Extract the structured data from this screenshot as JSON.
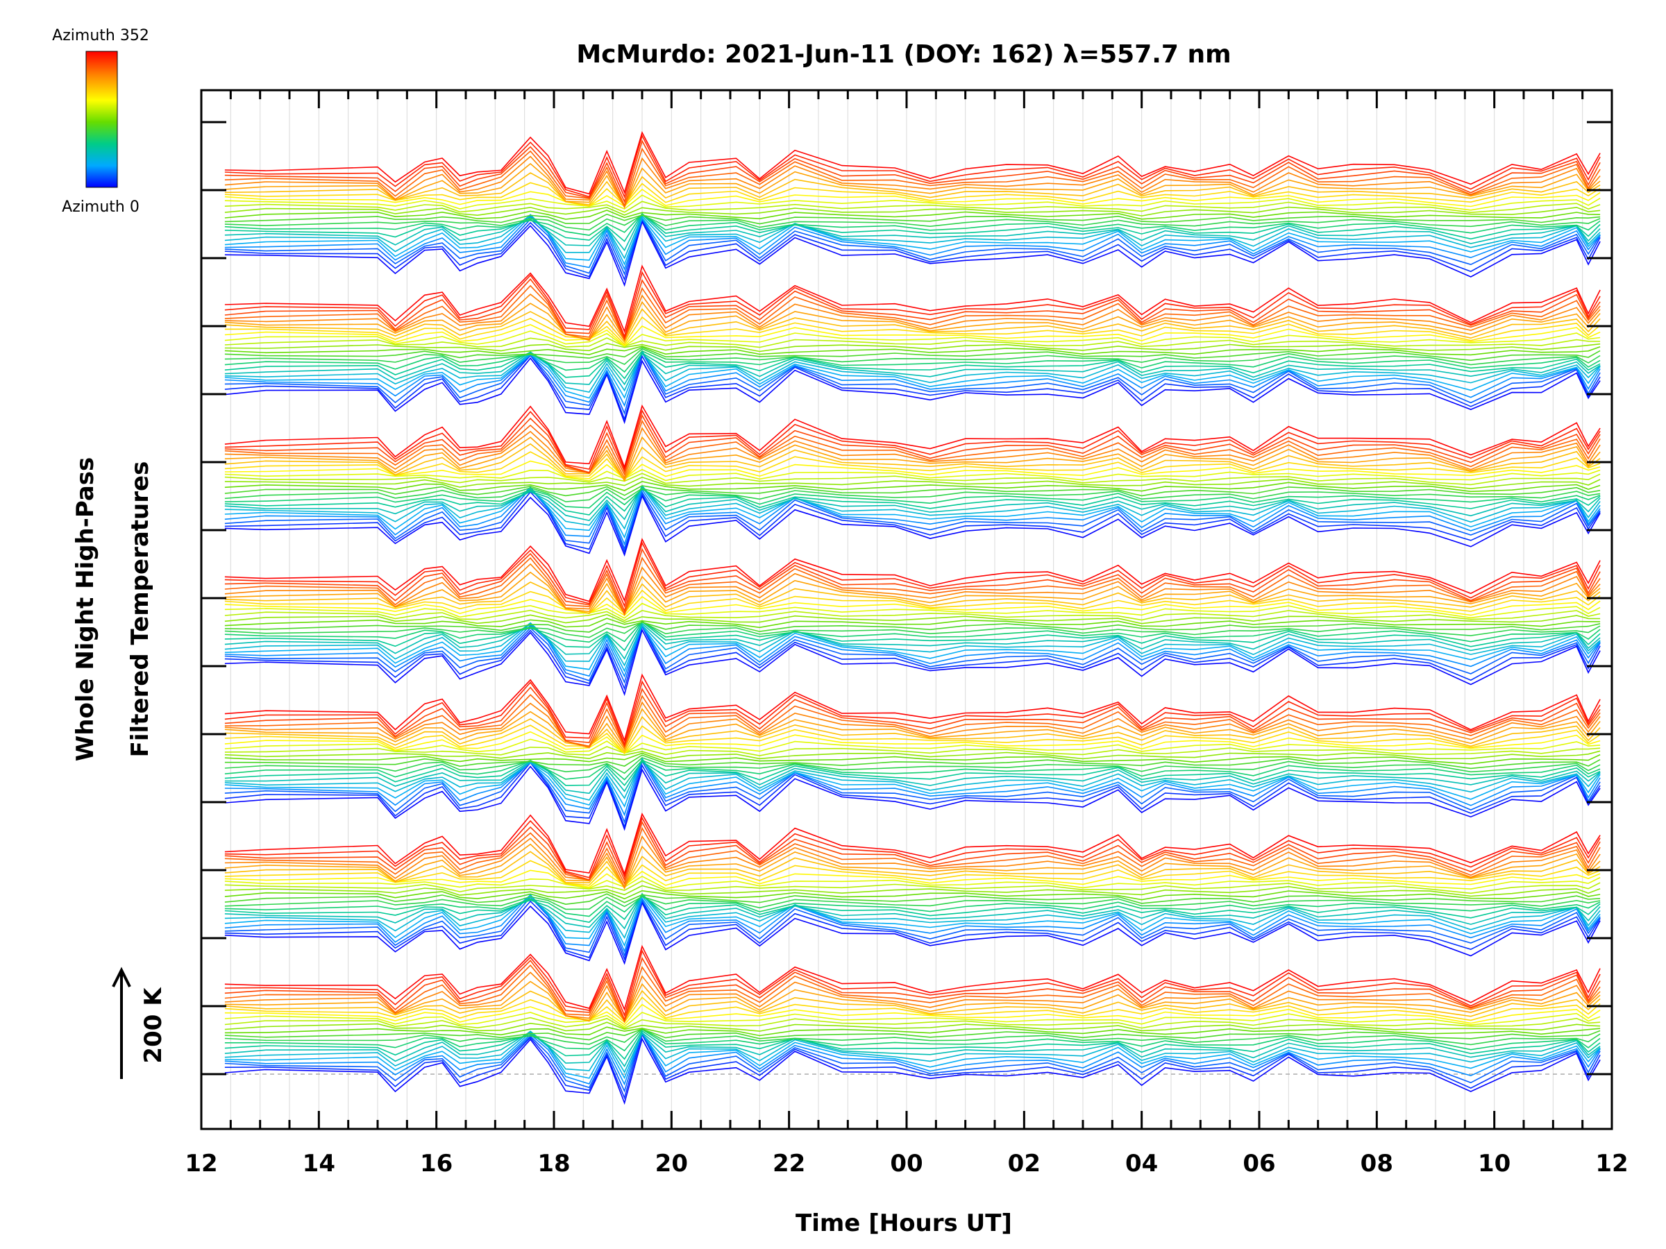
{
  "chart_data": {
    "type": "line",
    "title": "McMurdo: 2021-Jun-11 (DOY: 162) λ=557.7 nm",
    "xlabel": "Time [Hours UT]",
    "ylabel_line1": "Whole Night High-Pass",
    "ylabel_line2": "Filtered Temperatures",
    "scale_label": "200 K",
    "colorbar": {
      "top_label": "Azimuth 352",
      "bottom_label": "Azimuth 0",
      "colors": [
        "#ff0000",
        "#ff8800",
        "#ffff00",
        "#66dd00",
        "#00cc88",
        "#00aaff",
        "#0000ff"
      ]
    },
    "x_tick_labels": [
      "12",
      "14",
      "16",
      "18",
      "20",
      "22",
      "00",
      "02",
      "04",
      "06",
      "08",
      "10",
      "12"
    ],
    "xlim": [
      12,
      36
    ],
    "azimuth_range": [
      0,
      352
    ],
    "rings": 7,
    "azimuths_per_ring": 24,
    "grid": "vertical",
    "times": [
      12.4,
      13.1,
      15.0,
      15.3,
      15.8,
      16.1,
      16.4,
      16.7,
      17.1,
      17.6,
      17.9,
      18.2,
      18.6,
      18.9,
      19.2,
      19.5,
      19.9,
      20.3,
      21.1,
      21.5,
      22.1,
      22.9,
      23.8,
      24.4,
      25.0,
      25.7,
      26.4,
      27.0,
      27.6,
      28.0,
      28.4,
      28.9,
      29.5,
      29.9,
      30.5,
      31.0,
      31.6,
      32.3,
      32.9,
      33.6,
      34.3,
      34.8,
      35.4,
      35.6,
      35.8
    ],
    "excursion_profile": [
      0,
      2,
      3,
      -22,
      10,
      16,
      -14,
      -8,
      0,
      48,
      18,
      -26,
      -32,
      26,
      -38,
      52,
      -12,
      6,
      12,
      -12,
      30,
      4,
      2,
      -10,
      0,
      2,
      4,
      -6,
      16,
      -14,
      6,
      0,
      6,
      -10,
      22,
      0,
      2,
      4,
      0,
      -24,
      4,
      2,
      26,
      -8,
      22
    ],
    "excursion_amplitude_K": 4.5
  }
}
